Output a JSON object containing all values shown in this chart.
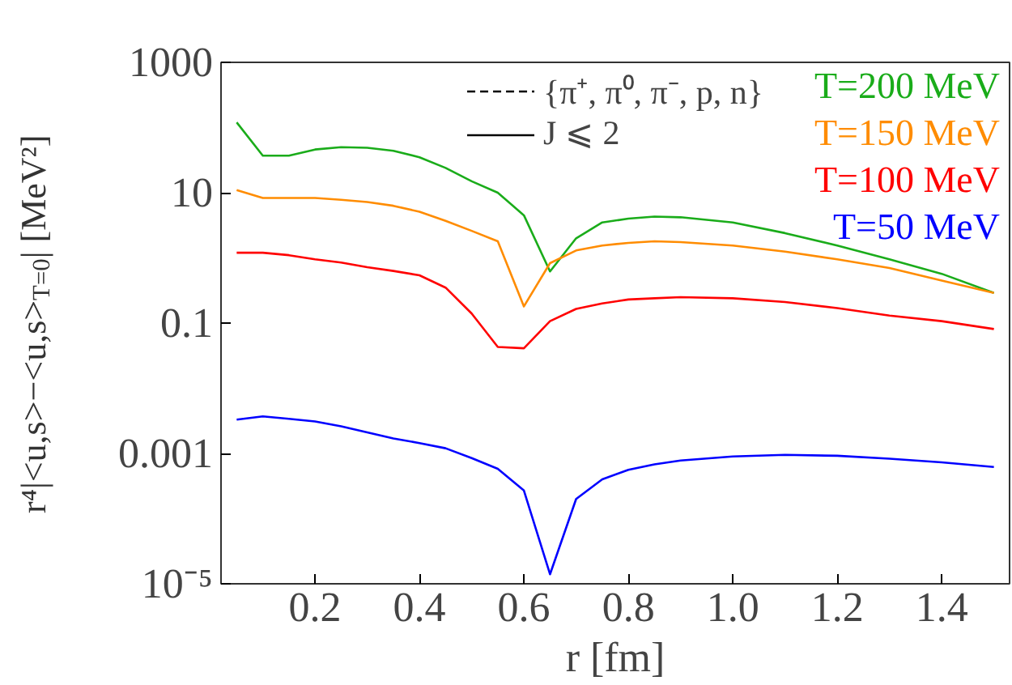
{
  "chart_data": {
    "type": "line",
    "xlabel": "r [fm]",
    "ylabel": "r⁴|<u,s>−<u,s>$_{T=0}$| [MeV²]",
    "log": "y",
    "legend": "top",
    "grid": false,
    "line_style": "solid",
    "marker": "none",
    "x": [
      0.05,
      0.1,
      0.15,
      0.2,
      0.25,
      0.3,
      0.35,
      0.4,
      0.45,
      0.5,
      0.55,
      0.6,
      0.65,
      0.7,
      0.75,
      0.8,
      0.85,
      0.9,
      1.0,
      1.1,
      1.2,
      1.3,
      1.4,
      1.5
    ],
    "xlim": [
      0.02,
      1.53
    ],
    "xticks": [
      {
        "value": 0.2,
        "label": "0.2"
      },
      {
        "value": 0.4,
        "label": "0.4"
      },
      {
        "value": 0.6,
        "label": "0.6"
      },
      {
        "value": 0.8,
        "label": "0.8"
      },
      {
        "value": 1.0,
        "label": "1.0"
      },
      {
        "value": 1.2,
        "label": "1.2"
      },
      {
        "value": 1.4,
        "label": "1.4"
      }
    ],
    "ylim": [
      1e-05,
      1000
    ],
    "yticks": [
      {
        "value": 1e-05,
        "label": "10⁻⁵"
      },
      0.001,
      0.1,
      10,
      1000
    ],
    "series": [
      {
        "name": "T=200 MeV",
        "color": "#1aac1a",
        "values": [
          120,
          37,
          37,
          46,
          50,
          49,
          44,
          35,
          24,
          15,
          10,
          4.5,
          0.62,
          2.0,
          3.5,
          4.0,
          4.3,
          4.2,
          3.5,
          2.4,
          1.55,
          0.95,
          0.57,
          0.29
        ]
      },
      {
        "name": "T=150 MeV",
        "color": "#ff8c00",
        "values": [
          11,
          8.3,
          8.3,
          8.3,
          7.8,
          7.2,
          6.3,
          5.1,
          3.7,
          2.6,
          1.8,
          0.18,
          0.83,
          1.3,
          1.55,
          1.7,
          1.8,
          1.75,
          1.55,
          1.25,
          0.95,
          0.7,
          0.45,
          0.29
        ]
      },
      {
        "name": "T=100 MeV",
        "color": "#ff0000",
        "values": [
          1.2,
          1.2,
          1.1,
          0.95,
          0.85,
          0.72,
          0.63,
          0.54,
          0.35,
          0.14,
          0.043,
          0.041,
          0.107,
          0.165,
          0.2,
          0.23,
          0.24,
          0.25,
          0.24,
          0.21,
          0.17,
          0.13,
          0.107,
          0.081
        ]
      },
      {
        "name": "T=50 MeV",
        "color": "#0000ff",
        "values": [
          0.0033,
          0.0037,
          0.0034,
          0.0031,
          0.0026,
          0.0021,
          0.0017,
          0.00144,
          0.0012,
          0.00085,
          0.00058,
          0.00027,
          1.4e-05,
          0.0002,
          0.0004,
          0.00056,
          0.00068,
          0.00078,
          0.0009,
          0.00095,
          0.00092,
          0.00083,
          0.00073,
          0.00062
        ]
      },
      {
        "name": "{π⁺, π⁰, π⁻, p, n}",
        "color": "#000000",
        "line_style": "dashed",
        "values": [
          null,
          null,
          null,
          null,
          null,
          null,
          null,
          null,
          null,
          null,
          null,
          null,
          null,
          null,
          null,
          null,
          null,
          null,
          null,
          null,
          null,
          null,
          null,
          null
        ]
      },
      {
        "name": "J ⩽ 2",
        "color": "#000000",
        "line_style": "solid",
        "values": [
          null,
          null,
          null,
          null,
          null,
          null,
          null,
          null,
          null,
          null,
          null,
          null,
          null,
          null,
          null,
          null,
          null,
          null,
          null,
          null,
          null,
          null,
          null,
          null
        ]
      }
    ]
  }
}
